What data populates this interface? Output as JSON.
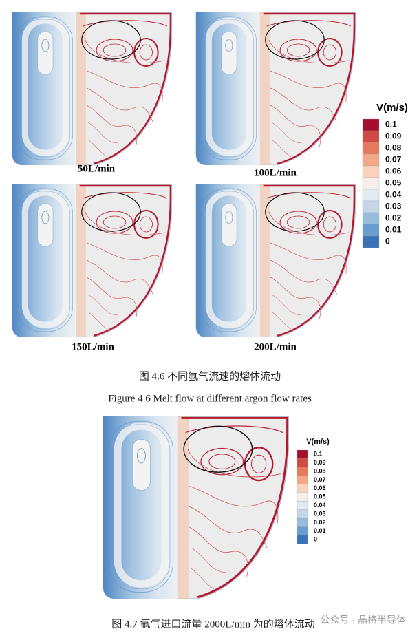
{
  "figure_4_6": {
    "panels": [
      {
        "label": "50L/min"
      },
      {
        "label": "100L/min"
      },
      {
        "label": "150L/min"
      },
      {
        "label": "200L/min"
      }
    ],
    "colorbar": {
      "title": "V(m/s)",
      "labels": [
        "0.1",
        "0.09",
        "0.08",
        "0.07",
        "0.06",
        "0.05",
        "0.04",
        "0.03",
        "0.02",
        "0.01",
        "0"
      ]
    },
    "caption_cn": "图 4.6 不同氩气流速的熔体流动",
    "caption_en": "Figure 4.6 Melt flow at different argon flow rates"
  },
  "figure_4_7": {
    "colorbar": {
      "title": "V(m/s)",
      "labels": [
        "0.1",
        "0.09",
        "0.08",
        "0.07",
        "0.06",
        "0.05",
        "0.04",
        "0.03",
        "0.02",
        "0.01",
        "0"
      ]
    },
    "caption": "图 4.7 氩气进口流量 2000L/min 为的熔体流动"
  },
  "watermark": "公众号 · 晶格半导体"
}
